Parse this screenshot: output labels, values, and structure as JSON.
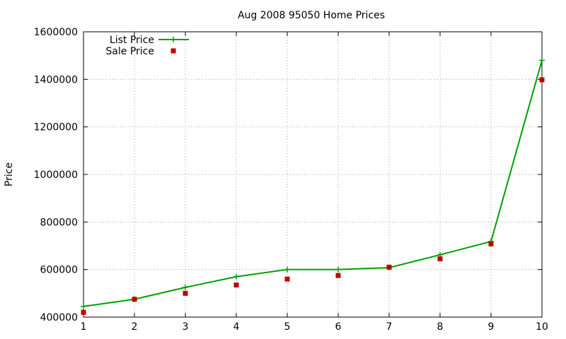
{
  "chart_data": {
    "type": "line",
    "title": "Aug 2008 95050 Home Prices",
    "xlabel": "",
    "ylabel": "Price",
    "x": [
      1,
      2,
      3,
      4,
      5,
      6,
      7,
      8,
      9,
      10
    ],
    "xlim": [
      1,
      10
    ],
    "ylim": [
      400000,
      1600000
    ],
    "xticks": [
      "1",
      "2",
      "3",
      "4",
      "5",
      "6",
      "7",
      "8",
      "9",
      "10"
    ],
    "yticks": [
      "400000",
      "600000",
      "800000",
      "1000000",
      "1200000",
      "1400000",
      "1600000"
    ],
    "grid": true,
    "legend_position": "top-left",
    "series": [
      {
        "name": "List Price",
        "style": "line-with-plus-markers",
        "color": "#00a000",
        "values": [
          445000,
          475000,
          525000,
          570000,
          600000,
          600000,
          608000,
          662000,
          718000,
          1480000
        ]
      },
      {
        "name": "Sale Price",
        "style": "square-markers",
        "color": "#c00000",
        "values": [
          420000,
          475000,
          500000,
          535000,
          560000,
          575000,
          610000,
          645000,
          708000,
          1398000
        ]
      }
    ]
  }
}
